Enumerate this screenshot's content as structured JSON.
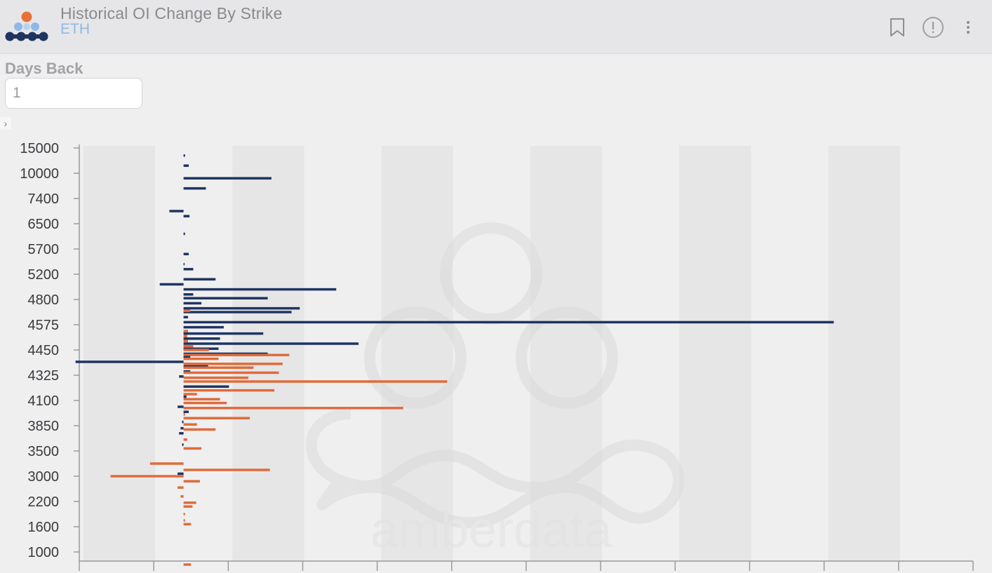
{
  "header": {
    "title": "Historical OI Change By Strike",
    "subtitle": "ETH",
    "icons": [
      "bookmark-icon",
      "info-icon",
      "more-vertical-icon"
    ]
  },
  "controls": {
    "days_back_label": "Days Back",
    "days_back_value": "1"
  },
  "colors": {
    "calls": "#1f3461",
    "puts": "#e06b3a",
    "logo_orange": "#e8713a",
    "logo_blue_light": "#8fb8e6",
    "logo_navy": "#1f3461"
  },
  "watermark": "amberdata",
  "chart_data": {
    "type": "bar",
    "orientation": "horizontal",
    "title": "",
    "xlabel": "",
    "ylabel": "",
    "y_tick_labels": [
      "15000",
      "10000",
      "7400",
      "6500",
      "5700",
      "5200",
      "4800",
      "4575",
      "4450",
      "4325",
      "4100",
      "3850",
      "3500",
      "3000",
      "2200",
      "1600",
      "1000"
    ],
    "xlim": [
      -1400,
      10600
    ],
    "grid": "alternating vertical bands",
    "legend": "none",
    "bars": [
      {
        "y": 0.3,
        "v": 20,
        "s": "calls"
      },
      {
        "y": 0.7,
        "v": 70,
        "s": "calls"
      },
      {
        "y": 1.2,
        "v": 1180,
        "s": "calls"
      },
      {
        "y": 1.6,
        "v": 300,
        "s": "calls"
      },
      {
        "y": 2.5,
        "v": -190,
        "s": "calls"
      },
      {
        "y": 2.7,
        "v": 80,
        "s": "calls"
      },
      {
        "y": 3.4,
        "v": 20,
        "s": "calls"
      },
      {
        "y": 4.2,
        "v": 70,
        "s": "calls"
      },
      {
        "y": 4.6,
        "v": 10,
        "s": "calls"
      },
      {
        "y": 4.8,
        "v": 130,
        "s": "calls"
      },
      {
        "y": 5.2,
        "v": 430,
        "s": "calls"
      },
      {
        "y": 5.4,
        "v": -320,
        "s": "calls"
      },
      {
        "y": 5.6,
        "v": 2050,
        "s": "calls"
      },
      {
        "y": 5.8,
        "v": 130,
        "s": "calls"
      },
      {
        "y": 5.95,
        "v": 1130,
        "s": "calls"
      },
      {
        "y": 6.15,
        "v": 240,
        "s": "calls"
      },
      {
        "y": 6.35,
        "v": 1560,
        "s": "calls"
      },
      {
        "y": 6.5,
        "v": 1450,
        "s": "calls"
      },
      {
        "y": 6.45,
        "v": 90,
        "s": "puts"
      },
      {
        "y": 6.7,
        "v": 60,
        "s": "calls"
      },
      {
        "y": 6.9,
        "v": 8730,
        "s": "calls"
      },
      {
        "y": 7.1,
        "v": 540,
        "s": "calls"
      },
      {
        "y": 7.25,
        "v": 60,
        "s": "puts"
      },
      {
        "y": 7.35,
        "v": 1070,
        "s": "calls"
      },
      {
        "y": 7.45,
        "v": 50,
        "s": "puts"
      },
      {
        "y": 7.55,
        "v": 490,
        "s": "calls"
      },
      {
        "y": 7.65,
        "v": 60,
        "s": "puts"
      },
      {
        "y": 7.75,
        "v": 2350,
        "s": "calls"
      },
      {
        "y": 7.85,
        "v": 130,
        "s": "puts"
      },
      {
        "y": 7.95,
        "v": 470,
        "s": "calls"
      },
      {
        "y": 8.0,
        "v": 340,
        "s": "puts"
      },
      {
        "y": 8.15,
        "v": 1130,
        "s": "calls"
      },
      {
        "y": 8.2,
        "v": 1420,
        "s": "puts"
      },
      {
        "y": 8.28,
        "v": 90,
        "s": "calls"
      },
      {
        "y": 8.35,
        "v": 470,
        "s": "puts"
      },
      {
        "y": 8.47,
        "v": -1450,
        "s": "calls"
      },
      {
        "y": 8.55,
        "v": 1330,
        "s": "puts"
      },
      {
        "y": 8.65,
        "v": 330,
        "s": "calls"
      },
      {
        "y": 8.7,
        "v": 940,
        "s": "puts"
      },
      {
        "y": 8.85,
        "v": 90,
        "s": "calls"
      },
      {
        "y": 8.9,
        "v": 1280,
        "s": "puts"
      },
      {
        "y": 9.05,
        "v": -60,
        "s": "calls"
      },
      {
        "y": 9.1,
        "v": 870,
        "s": "puts"
      },
      {
        "y": 9.25,
        "v": 3540,
        "s": "puts"
      },
      {
        "y": 9.45,
        "v": 610,
        "s": "calls"
      },
      {
        "y": 9.6,
        "v": 1220,
        "s": "puts"
      },
      {
        "y": 9.75,
        "v": 180,
        "s": "puts"
      },
      {
        "y": 9.85,
        "v": 40,
        "s": "calls"
      },
      {
        "y": 9.95,
        "v": 490,
        "s": "puts"
      },
      {
        "y": 10.1,
        "v": 580,
        "s": "puts"
      },
      {
        "y": 10.25,
        "v": -80,
        "s": "calls"
      },
      {
        "y": 10.3,
        "v": 2950,
        "s": "puts"
      },
      {
        "y": 10.45,
        "v": 70,
        "s": "calls"
      },
      {
        "y": 10.55,
        "v": 20,
        "s": "puts"
      },
      {
        "y": 10.7,
        "v": 890,
        "s": "puts"
      },
      {
        "y": 10.85,
        "v": -20,
        "s": "calls"
      },
      {
        "y": 10.95,
        "v": 180,
        "s": "puts"
      },
      {
        "y": 11.1,
        "v": -40,
        "s": "calls"
      },
      {
        "y": 11.15,
        "v": 430,
        "s": "puts"
      },
      {
        "y": 11.3,
        "v": -60,
        "s": "calls"
      },
      {
        "y": 11.55,
        "v": 50,
        "s": "puts"
      },
      {
        "y": 11.75,
        "v": -20,
        "s": "calls"
      },
      {
        "y": 11.9,
        "v": 240,
        "s": "puts"
      },
      {
        "y": 12.5,
        "v": -450,
        "s": "puts"
      },
      {
        "y": 12.75,
        "v": 1160,
        "s": "puts"
      },
      {
        "y": 12.9,
        "v": -80,
        "s": "calls"
      },
      {
        "y": 13.0,
        "v": -980,
        "s": "puts"
      },
      {
        "y": 13.2,
        "v": 220,
        "s": "puts"
      },
      {
        "y": 13.45,
        "v": -80,
        "s": "puts"
      },
      {
        "y": 13.8,
        "v": -40,
        "s": "puts"
      },
      {
        "y": 14.05,
        "v": 170,
        "s": "puts"
      },
      {
        "y": 14.2,
        "v": 120,
        "s": "puts"
      },
      {
        "y": 14.5,
        "v": 20,
        "s": "puts"
      },
      {
        "y": 14.75,
        "v": 20,
        "s": "puts"
      },
      {
        "y": 14.9,
        "v": 100,
        "s": "puts"
      },
      {
        "y": 16.5,
        "v": 100,
        "s": "puts"
      }
    ]
  }
}
